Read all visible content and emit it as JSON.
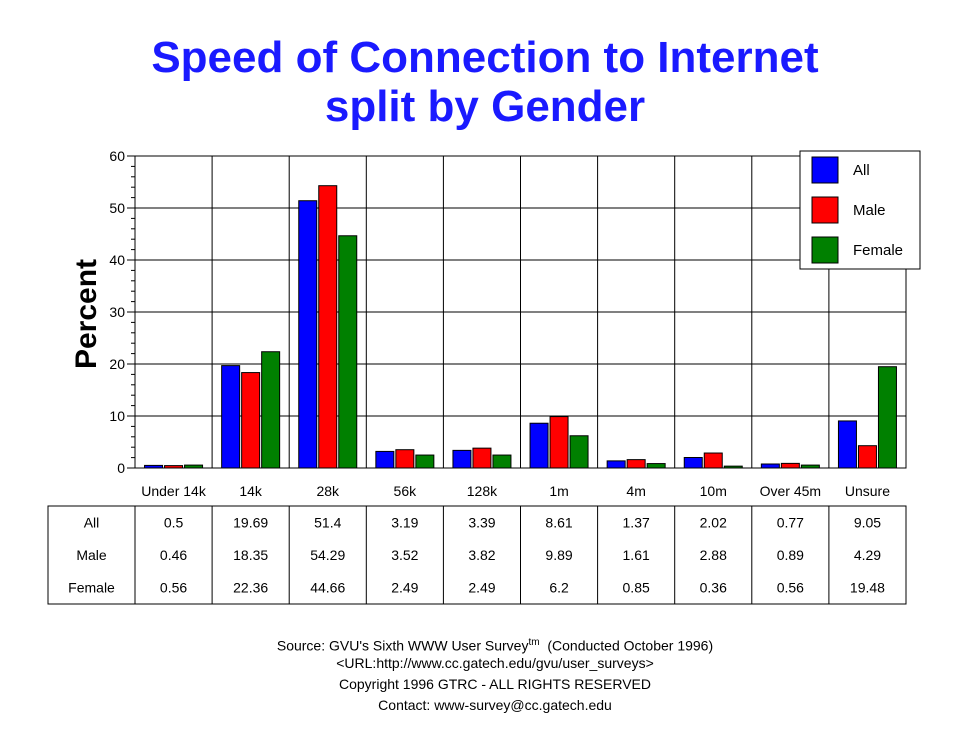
{
  "chart_data": {
    "type": "bar",
    "title": [
      "Speed of Connection to Internet",
      "split by Gender"
    ],
    "ylabel": "Percent",
    "ylim": [
      0,
      60
    ],
    "yticks": [
      0,
      10,
      20,
      30,
      40,
      50,
      60
    ],
    "categories": [
      "Under 14k",
      "14k",
      "28k",
      "56k",
      "128k",
      "1m",
      "4m",
      "10m",
      "Over 45m",
      "Unsure"
    ],
    "series": [
      {
        "name": "All",
        "color": "#0000ff",
        "values": [
          0.5,
          19.69,
          51.4,
          3.19,
          3.39,
          8.61,
          1.37,
          2.02,
          0.77,
          9.05
        ]
      },
      {
        "name": "Male",
        "color": "#ff0000",
        "values": [
          0.46,
          18.35,
          54.29,
          3.52,
          3.82,
          9.89,
          1.61,
          2.88,
          0.89,
          4.29
        ]
      },
      {
        "name": "Female",
        "color": "#008000",
        "values": [
          0.56,
          22.36,
          44.66,
          2.49,
          2.49,
          6.2,
          0.85,
          0.36,
          0.56,
          19.48
        ]
      }
    ],
    "table": {
      "rows": [
        {
          "label": "All",
          "values": [
            "0.5",
            "19.69",
            "51.4",
            "3.19",
            "3.39",
            "8.61",
            "1.37",
            "2.02",
            "0.77",
            "9.05"
          ]
        },
        {
          "label": "Male",
          "values": [
            "0.46",
            "18.35",
            "54.29",
            "3.52",
            "3.82",
            "9.89",
            "1.61",
            "2.88",
            "0.89",
            "4.29"
          ]
        },
        {
          "label": "Female",
          "values": [
            "0.56",
            "22.36",
            "44.66",
            "2.49",
            "2.49",
            "6.2",
            "0.85",
            "0.36",
            "0.56",
            "19.48"
          ]
        }
      ]
    },
    "grid": true,
    "legend": "top-right"
  },
  "footer": {
    "source_prefix": "Source: GVU's Sixth WWW User Survey",
    "source_sup": "tm",
    "source_suffix": "  (Conducted October 1996)",
    "url": "<URL:http://www.cc.gatech.edu/gvu/user_surveys>",
    "copyright": "Copyright 1996 GTRC -  ALL RIGHTS RESERVED",
    "contact": "Contact: www-survey@cc.gatech.edu"
  }
}
